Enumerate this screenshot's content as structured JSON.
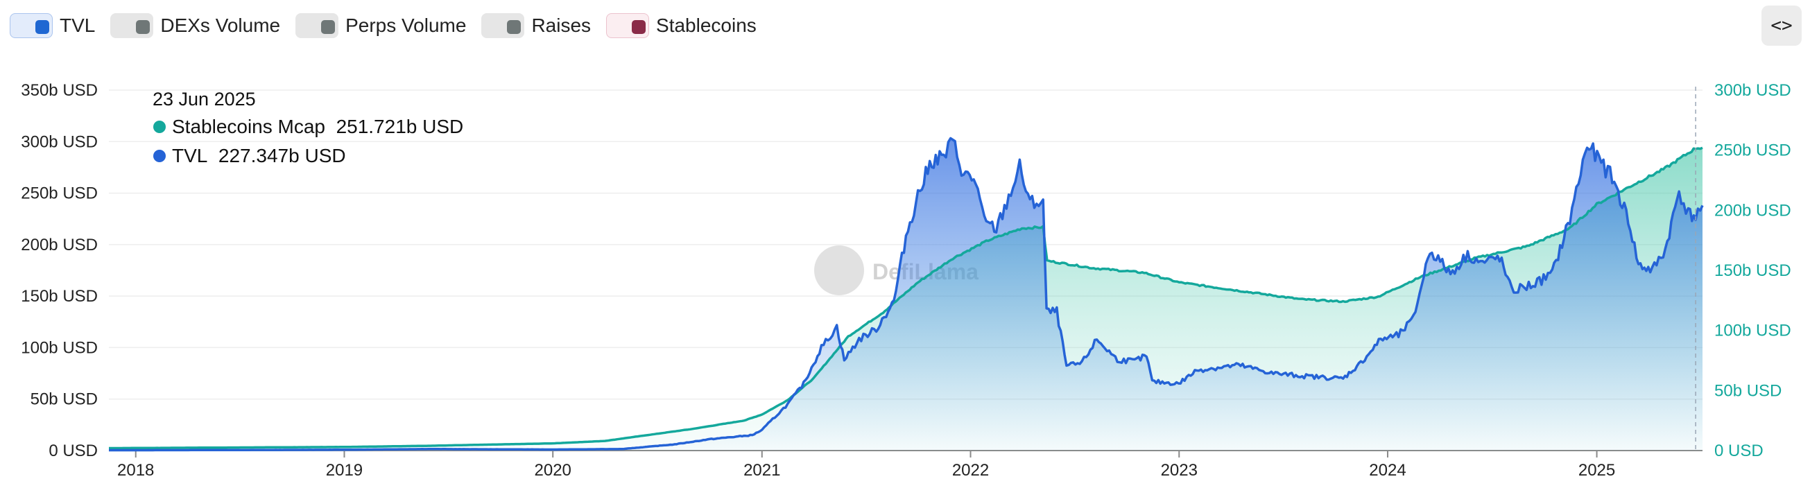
{
  "toolbar": {
    "toggles": [
      {
        "label": "TVL",
        "active": true,
        "color": "#1f67d2",
        "bg": "#e3ecfb",
        "border": "#aac4ee"
      },
      {
        "label": "DEXs Volume",
        "active": false,
        "color": "#6f7777",
        "bg": "#e6e6e6",
        "border": "#e6e6e6"
      },
      {
        "label": "Perps Volume",
        "active": false,
        "color": "#6f7777",
        "bg": "#e6e6e6",
        "border": "#e6e6e6"
      },
      {
        "label": "Raises",
        "active": false,
        "color": "#6f7777",
        "bg": "#e6e6e6",
        "border": "#e6e6e6"
      },
      {
        "label": "Stablecoins",
        "active": true,
        "color": "#8a2b48",
        "bg": "#fbeef1",
        "border": "#ecc2cd"
      }
    ],
    "embed_icon": "code-brackets-icon",
    "embed_label": "<>"
  },
  "watermark": "DefiLlama",
  "tooltip": {
    "date": "23 Jun 2025",
    "rows": [
      {
        "name": "Stablecoins Mcap",
        "value": "251.721b USD",
        "color": "#14a89c"
      },
      {
        "name": "TVL",
        "value": "227.347b USD",
        "color": "#2563d6"
      }
    ]
  },
  "chart_data": {
    "type": "area",
    "x_labels": [
      "2018",
      "2019",
      "2020",
      "2021",
      "2022",
      "2023",
      "2024",
      "2025"
    ],
    "xlim": [
      "2017-11-15",
      "2025-07-05"
    ],
    "left_axis": {
      "ticks": [
        "0 USD",
        "50b USD",
        "100b USD",
        "150b USD",
        "200b USD",
        "250b USD",
        "300b USD",
        "350b USD"
      ],
      "ylim": [
        0,
        350
      ],
      "color": "#222222"
    },
    "right_axis": {
      "ticks": [
        "0 USD",
        "50b USD",
        "100b USD",
        "150b USD",
        "200b USD",
        "250b USD",
        "300b USD"
      ],
      "ylim": [
        0,
        300
      ],
      "color": "#14a89c"
    },
    "grid": true,
    "series": [
      {
        "name": "TVL",
        "axis": "left",
        "color": "#2563d6",
        "points": [
          [
            "2017-11-15",
            0.3
          ],
          [
            "2018-06-01",
            0.5
          ],
          [
            "2019-01-01",
            0.8
          ],
          [
            "2019-06-01",
            1.5
          ],
          [
            "2020-01-01",
            1.0
          ],
          [
            "2020-05-01",
            1.5
          ],
          [
            "2020-08-01",
            6
          ],
          [
            "2020-10-01",
            11
          ],
          [
            "2020-12-15",
            15
          ],
          [
            "2021-01-01",
            20
          ],
          [
            "2021-02-15",
            45
          ],
          [
            "2021-03-15",
            65
          ],
          [
            "2021-04-15",
            100
          ],
          [
            "2021-05-12",
            120
          ],
          [
            "2021-05-25",
            88
          ],
          [
            "2021-06-20",
            108
          ],
          [
            "2021-07-20",
            118
          ],
          [
            "2021-08-20",
            145
          ],
          [
            "2021-09-10",
            208
          ],
          [
            "2021-10-01",
            248
          ],
          [
            "2021-10-25",
            282
          ],
          [
            "2021-11-15",
            285
          ],
          [
            "2021-12-01",
            300
          ],
          [
            "2021-12-20",
            268
          ],
          [
            "2022-01-10",
            262
          ],
          [
            "2022-01-25",
            222
          ],
          [
            "2022-02-15",
            215
          ],
          [
            "2022-03-05",
            240
          ],
          [
            "2022-03-28",
            275
          ],
          [
            "2022-04-15",
            240
          ],
          [
            "2022-05-08",
            242
          ],
          [
            "2022-05-14",
            135
          ],
          [
            "2022-06-01",
            135
          ],
          [
            "2022-06-18",
            82
          ],
          [
            "2022-07-15",
            85
          ],
          [
            "2022-08-10",
            108
          ],
          [
            "2022-09-15",
            88
          ],
          [
            "2022-10-15",
            87
          ],
          [
            "2022-11-05",
            92
          ],
          [
            "2022-11-15",
            67
          ],
          [
            "2022-12-31",
            65
          ],
          [
            "2023-02-01",
            78
          ],
          [
            "2023-04-15",
            83
          ],
          [
            "2023-06-15",
            75
          ],
          [
            "2023-08-15",
            72
          ],
          [
            "2023-10-15",
            70
          ],
          [
            "2023-11-15",
            85
          ],
          [
            "2023-12-20",
            108
          ],
          [
            "2024-01-20",
            112
          ],
          [
            "2024-02-15",
            128
          ],
          [
            "2024-03-15",
            195
          ],
          [
            "2024-04-20",
            172
          ],
          [
            "2024-05-20",
            190
          ],
          [
            "2024-06-15",
            182
          ],
          [
            "2024-07-15",
            188
          ],
          [
            "2024-08-05",
            155
          ],
          [
            "2024-09-15",
            162
          ],
          [
            "2024-10-15",
            172
          ],
          [
            "2024-11-15",
            225
          ],
          [
            "2024-12-15",
            297
          ],
          [
            "2025-01-05",
            282
          ],
          [
            "2025-01-28",
            265
          ],
          [
            "2025-02-25",
            225
          ],
          [
            "2025-03-15",
            180
          ],
          [
            "2025-04-08",
            175
          ],
          [
            "2025-05-01",
            195
          ],
          [
            "2025-05-25",
            252
          ],
          [
            "2025-06-10",
            230
          ],
          [
            "2025-06-23",
            227.3
          ],
          [
            "2025-07-05",
            238
          ]
        ]
      },
      {
        "name": "Stablecoins Mcap",
        "axis": "right",
        "color": "#14a89c",
        "points": [
          [
            "2017-11-15",
            2
          ],
          [
            "2018-06-01",
            2.5
          ],
          [
            "2019-01-01",
            3
          ],
          [
            "2019-06-01",
            4
          ],
          [
            "2020-01-01",
            6
          ],
          [
            "2020-04-01",
            8
          ],
          [
            "2020-06-01",
            12
          ],
          [
            "2020-09-01",
            18
          ],
          [
            "2020-12-01",
            25
          ],
          [
            "2021-01-01",
            30
          ],
          [
            "2021-02-15",
            42
          ],
          [
            "2021-04-01",
            60
          ],
          [
            "2021-06-01",
            95
          ],
          [
            "2021-08-01",
            115
          ],
          [
            "2021-10-01",
            140
          ],
          [
            "2021-12-01",
            160
          ],
          [
            "2022-02-01",
            175
          ],
          [
            "2022-04-01",
            185
          ],
          [
            "2022-05-08",
            186
          ],
          [
            "2022-05-15",
            158
          ],
          [
            "2022-08-01",
            152
          ],
          [
            "2022-11-01",
            148
          ],
          [
            "2023-01-01",
            140
          ],
          [
            "2023-04-01",
            134
          ],
          [
            "2023-08-01",
            126
          ],
          [
            "2023-10-15",
            124
          ],
          [
            "2023-12-15",
            128
          ],
          [
            "2024-03-01",
            145
          ],
          [
            "2024-06-01",
            160
          ],
          [
            "2024-09-01",
            170
          ],
          [
            "2024-11-15",
            185
          ],
          [
            "2025-01-01",
            205
          ],
          [
            "2025-03-01",
            220
          ],
          [
            "2025-05-01",
            235
          ],
          [
            "2025-06-23",
            251.7
          ],
          [
            "2025-07-05",
            252
          ]
        ]
      }
    ]
  }
}
